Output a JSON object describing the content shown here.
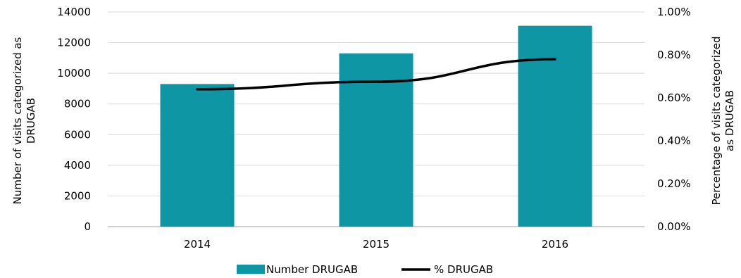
{
  "chart_data": {
    "type": "bar",
    "categories": [
      "2014",
      "2015",
      "2016"
    ],
    "series": [
      {
        "name": "Number DRUGAB",
        "type": "bar",
        "axis": "left",
        "values": [
          9300,
          11300,
          13100
        ],
        "color": "#0e96a5"
      },
      {
        "name": "% DRUGAB",
        "type": "line",
        "axis": "right",
        "values": [
          0.64,
          0.675,
          0.78
        ],
        "color": "#000000"
      }
    ],
    "y_left": {
      "label_lines": [
        "Number of visits categorized as",
        "DRUGAB"
      ],
      "ylim": [
        0,
        14000
      ],
      "ticks": [
        0,
        2000,
        4000,
        6000,
        8000,
        10000,
        12000,
        14000
      ],
      "tick_labels": [
        "0",
        "2000",
        "4000",
        "6000",
        "8000",
        "10000",
        "12000",
        "14000"
      ]
    },
    "y_right": {
      "label_lines": [
        "Percentage of visits categorized",
        "as DRUGAB"
      ],
      "ylim": [
        0,
        1.0
      ],
      "ticks": [
        0,
        0.2,
        0.4,
        0.6,
        0.8,
        1.0
      ],
      "tick_labels": [
        "0.00%",
        "0.20%",
        "0.40%",
        "0.60%",
        "0.80%",
        "1.00%"
      ]
    },
    "grid": true,
    "legend": {
      "position": "bottom",
      "items": [
        "Number DRUGAB",
        "% DRUGAB"
      ]
    }
  }
}
